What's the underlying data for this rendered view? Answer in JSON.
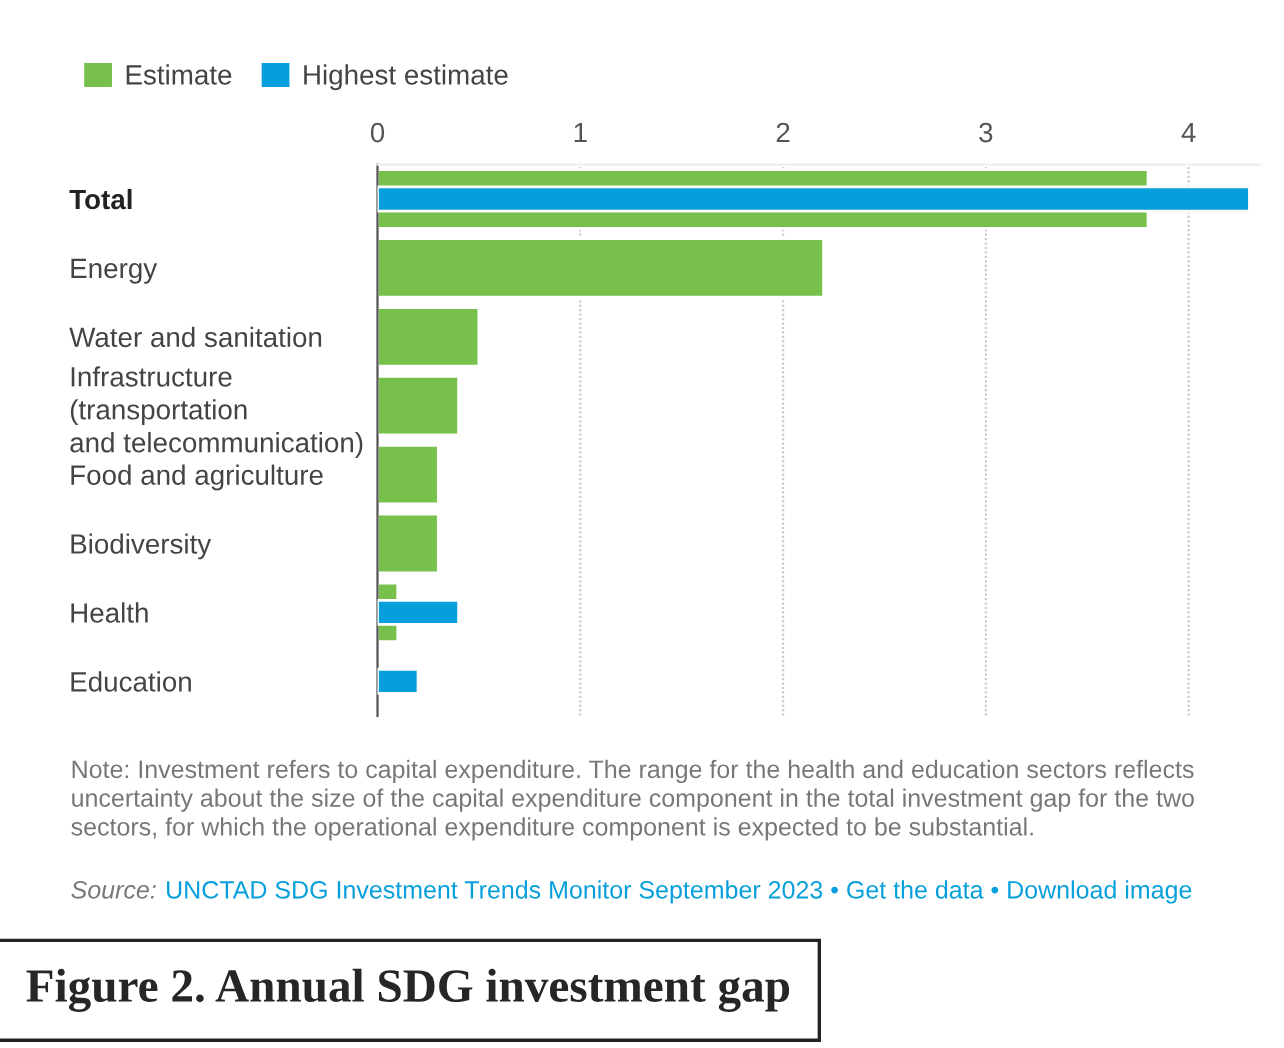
{
  "chart_data": {
    "type": "bar",
    "orientation": "horizontal",
    "title": "Figure 2. Annual SDG investment gap",
    "categories": [
      "Total",
      "Energy",
      "Water and sanitation",
      "Infrastructure\n(transportation\nand telecommunication)",
      "Food and agriculture",
      "Biodiversity",
      "Health",
      "Education"
    ],
    "series": [
      {
        "name": "Estimate",
        "color": "#76c04b",
        "values": [
          3.8,
          2.2,
          0.5,
          0.4,
          0.3,
          0.3,
          0.1,
          null
        ]
      },
      {
        "name": "Highest estimate",
        "color": "#069fdb",
        "values": [
          4.3,
          null,
          null,
          null,
          null,
          null,
          0.4,
          0.2
        ]
      }
    ],
    "xlim": [
      0,
      4.35
    ],
    "xticks": [
      0,
      1,
      2,
      3,
      4
    ],
    "grid": "x",
    "legend": "top left",
    "annotations": [
      "Note: Investment refers to capital expenditure. The range for the health and education sectors reflects uncertainty about the size of the capital expenditure component in the total investment gap for the two sectors, for which the operational expenditure component is expected to be substantial.",
      "Source:",
      "UNCTAD SDG Investment Trends Monitor September 2023 • Get the data • Download image"
    ]
  }
}
